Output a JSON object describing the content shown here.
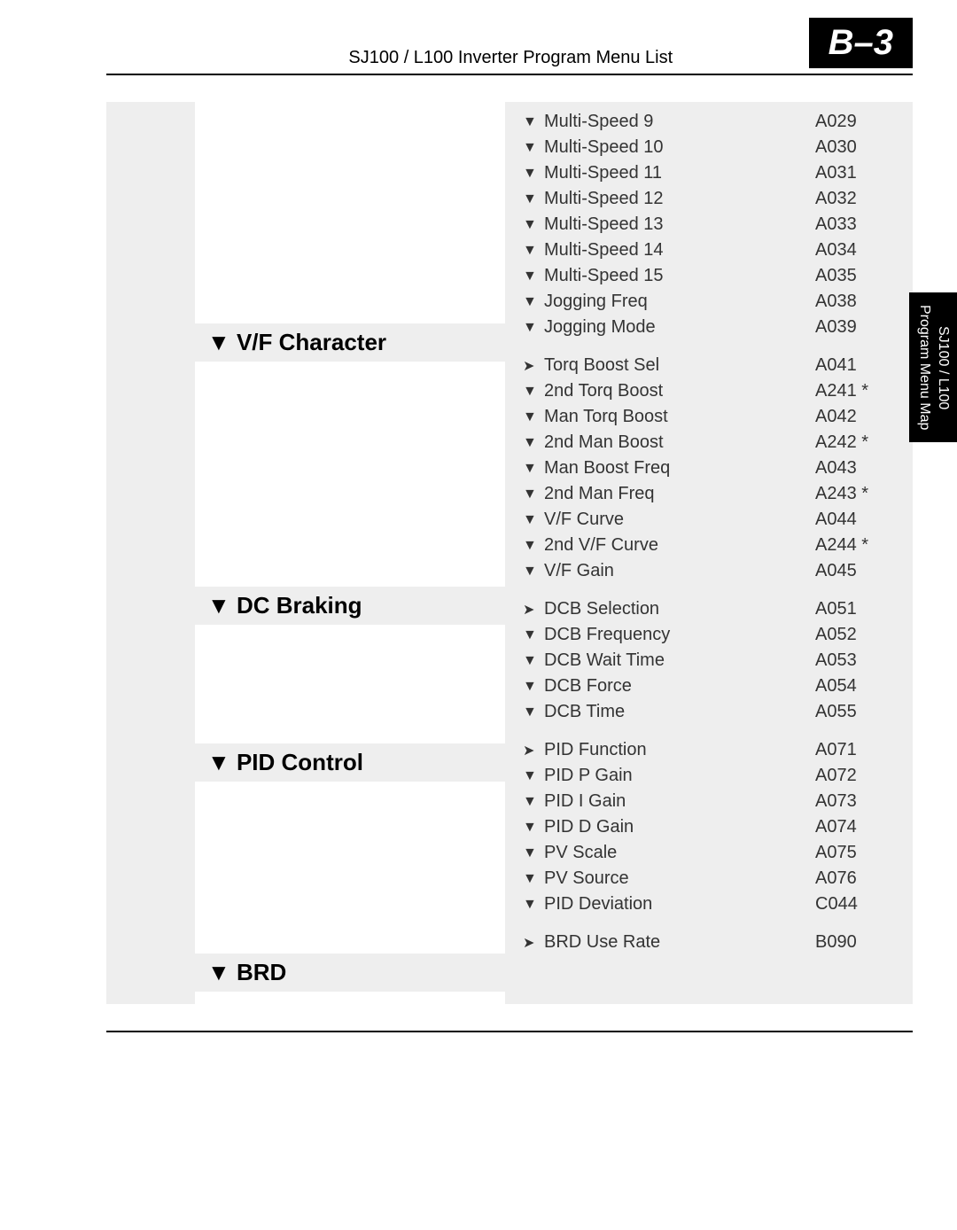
{
  "header": {
    "title": "SJ100 / L100 Inverter Program Menu List",
    "page_number": "B–3"
  },
  "side_tab": {
    "line1": "SJ100 / L100",
    "line2": "Program Menu Map"
  },
  "groups": [
    {
      "heading": null,
      "items": [
        {
          "marker": "down",
          "label": "Multi-Speed 9",
          "code": "A029"
        },
        {
          "marker": "down",
          "label": "Multi-Speed 10",
          "code": "A030"
        },
        {
          "marker": "down",
          "label": "Multi-Speed 11",
          "code": "A031"
        },
        {
          "marker": "down",
          "label": "Multi-Speed 12",
          "code": "A032"
        },
        {
          "marker": "down",
          "label": "Multi-Speed 13",
          "code": "A033"
        },
        {
          "marker": "down",
          "label": "Multi-Speed 14",
          "code": "A034"
        },
        {
          "marker": "down",
          "label": "Multi-Speed 15",
          "code": "A035"
        },
        {
          "marker": "down",
          "label": "Jogging Freq",
          "code": "A038"
        },
        {
          "marker": "down",
          "label": "Jogging Mode",
          "code": "A039"
        }
      ]
    },
    {
      "heading": "V/F Character",
      "items": [
        {
          "marker": "right",
          "label": "Torq Boost Sel",
          "code": "A041"
        },
        {
          "marker": "down",
          "label": "2nd Torq Boost",
          "code": "A241 *"
        },
        {
          "marker": "down",
          "label": "Man Torq Boost",
          "code": "A042"
        },
        {
          "marker": "down",
          "label": "2nd Man Boost",
          "code": "A242 *"
        },
        {
          "marker": "down",
          "label": "Man Boost Freq",
          "code": "A043"
        },
        {
          "marker": "down",
          "label": "2nd Man Freq",
          "code": "A243 *"
        },
        {
          "marker": "down",
          "label": "V/F Curve",
          "code": "A044"
        },
        {
          "marker": "down",
          "label": "2nd V/F Curve",
          "code": "A244 *"
        },
        {
          "marker": "down",
          "label": "V/F Gain",
          "code": "A045"
        }
      ]
    },
    {
      "heading": "DC Braking",
      "items": [
        {
          "marker": "right",
          "label": "DCB Selection",
          "code": "A051"
        },
        {
          "marker": "down",
          "label": "DCB Frequency",
          "code": "A052"
        },
        {
          "marker": "down",
          "label": "DCB Wait Time",
          "code": "A053"
        },
        {
          "marker": "down",
          "label": "DCB Force",
          "code": "A054"
        },
        {
          "marker": "down",
          "label": "DCB Time",
          "code": "A055"
        }
      ]
    },
    {
      "heading": "PID Control",
      "items": [
        {
          "marker": "right",
          "label": "PID Function",
          "code": "A071"
        },
        {
          "marker": "down",
          "label": "PID P Gain",
          "code": "A072"
        },
        {
          "marker": "down",
          "label": "PID I Gain",
          "code": "A073"
        },
        {
          "marker": "down",
          "label": "PID D Gain",
          "code": "A074"
        },
        {
          "marker": "down",
          "label": "PV Scale",
          "code": "A075"
        },
        {
          "marker": "down",
          "label": "PV Source",
          "code": "A076"
        },
        {
          "marker": "down",
          "label": "PID Deviation",
          "code": "C044"
        }
      ]
    },
    {
      "heading": "BRD",
      "items": [
        {
          "marker": "right",
          "label": "BRD Use Rate",
          "code": "B090"
        }
      ]
    }
  ]
}
